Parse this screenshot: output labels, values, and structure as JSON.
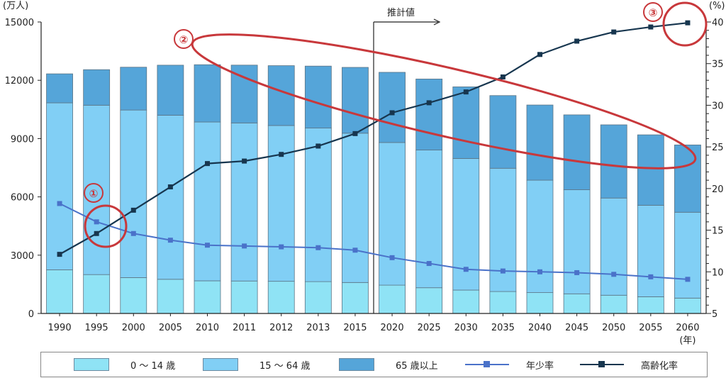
{
  "chart_data": {
    "type": "bar+line",
    "categories": [
      "1990",
      "1995",
      "2000",
      "2005",
      "2010",
      "2011",
      "2012",
      "2013",
      "2015",
      "2020",
      "2025",
      "2030",
      "2035",
      "2040",
      "2045",
      "2050",
      "2055",
      "2060"
    ],
    "x_unit": "(年)",
    "left_axis": {
      "unit": "(万人)",
      "ylim": [
        0,
        15000
      ],
      "ticks": [
        "0",
        "3000",
        "6000",
        "9000",
        "12000",
        "15000"
      ]
    },
    "right_axis": {
      "unit": "(%)",
      "ylim": [
        5,
        40
      ],
      "ticks": [
        "5",
        "10",
        "15",
        "20",
        "25",
        "30",
        "35",
        "40"
      ]
    },
    "bar_series": [
      {
        "name": "0 ～ 14 歳",
        "color": "#8fe3f5",
        "values": [
          2249,
          2001,
          1847,
          1759,
          1680,
          1671,
          1655,
          1639,
          1595,
          1457,
          1324,
          1204,
          1129,
          1073,
          1012,
          939,
          861,
          791
        ]
      },
      {
        "name": "15 ～ 64 歳",
        "color": "#81cff5",
        "values": [
          8590,
          8717,
          8622,
          8442,
          8173,
          8134,
          8018,
          7901,
          7682,
          7341,
          7085,
          6773,
          6343,
          5787,
          5353,
          5001,
          4706,
          4418
        ]
      },
      {
        "name": "65 歳以上",
        "color": "#55a5d9",
        "values": [
          1493,
          1828,
          2204,
          2576,
          2948,
          2975,
          3079,
          3190,
          3387,
          3612,
          3657,
          3685,
          3741,
          3868,
          3856,
          3768,
          3626,
          3464
        ]
      }
    ],
    "line_series": [
      {
        "name": "年少率",
        "axis": "right",
        "color": "#4a72c9",
        "values": [
          18.2,
          16.0,
          14.6,
          13.8,
          13.2,
          13.1,
          13.0,
          12.9,
          12.6,
          11.7,
          11.0,
          10.3,
          10.1,
          10.0,
          9.9,
          9.7,
          9.4,
          9.1
        ]
      },
      {
        "name": "高齢化率",
        "axis": "right",
        "color": "#17364f",
        "values": [
          12.1,
          14.6,
          17.4,
          20.2,
          23.0,
          23.3,
          24.1,
          25.1,
          26.6,
          29.1,
          30.3,
          31.6,
          33.4,
          36.1,
          37.7,
          38.8,
          39.4,
          39.9
        ]
      }
    ],
    "divider_after": "2015",
    "divider_label": "推計値",
    "annotations": [
      "①",
      "②",
      "③"
    ],
    "annotation_color": "#c8383b"
  }
}
